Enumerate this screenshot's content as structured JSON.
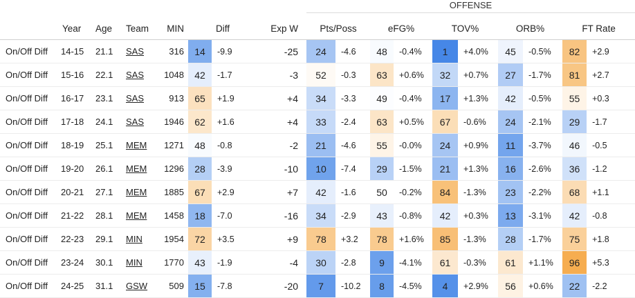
{
  "section": {
    "label": "OFFENSE"
  },
  "columns": [
    "",
    "Year",
    "Age",
    "Team",
    "MIN",
    "Diff",
    "Exp W",
    "Pts/Poss",
    "eFG%",
    "TOV%",
    "ORB%",
    "FT Rate"
  ],
  "rows": [
    {
      "label": "On/Off Diff",
      "year": "14-15",
      "age": "21.1",
      "team": "SAS",
      "min": "316",
      "diff_pct": "14",
      "diff": "-9.9",
      "expw": "-25",
      "pts_pct": "24",
      "pts": "-4.6",
      "efg_pct": "48",
      "efg": "-0.4%",
      "tov_pct": "1",
      "tov": "+4.0%",
      "orb_pct": "45",
      "orb": "-0.5%",
      "ft_pct": "82",
      "ft": "+2.9"
    },
    {
      "label": "On/Off Diff",
      "year": "15-16",
      "age": "22.1",
      "team": "SAS",
      "min": "1048",
      "diff_pct": "42",
      "diff": "-1.7",
      "expw": "-3",
      "pts_pct": "52",
      "pts": "-0.3",
      "efg_pct": "63",
      "efg": "+0.6%",
      "tov_pct": "32",
      "tov": "+0.7%",
      "orb_pct": "27",
      "orb": "-1.7%",
      "ft_pct": "81",
      "ft": "+2.7"
    },
    {
      "label": "On/Off Diff",
      "year": "16-17",
      "age": "23.1",
      "team": "SAS",
      "min": "913",
      "diff_pct": "65",
      "diff": "+1.9",
      "expw": "+4",
      "pts_pct": "34",
      "pts": "-3.3",
      "efg_pct": "49",
      "efg": "-0.4%",
      "tov_pct": "17",
      "tov": "+1.3%",
      "orb_pct": "42",
      "orb": "-0.5%",
      "ft_pct": "55",
      "ft": "+0.3"
    },
    {
      "label": "On/Off Diff",
      "year": "17-18",
      "age": "24.1",
      "team": "SAS",
      "min": "1946",
      "diff_pct": "62",
      "diff": "+1.6",
      "expw": "+4",
      "pts_pct": "33",
      "pts": "-2.4",
      "efg_pct": "63",
      "efg": "+0.5%",
      "tov_pct": "67",
      "tov": "-0.6%",
      "orb_pct": "24",
      "orb": "-2.1%",
      "ft_pct": "29",
      "ft": "-1.7"
    },
    {
      "label": "On/Off Diff",
      "year": "18-19",
      "age": "25.1",
      "team": "MEM",
      "min": "1271",
      "diff_pct": "48",
      "diff": "-0.8",
      "expw": "-2",
      "pts_pct": "21",
      "pts": "-4.6",
      "efg_pct": "55",
      "efg": "-0.0%",
      "tov_pct": "24",
      "tov": "+0.9%",
      "orb_pct": "11",
      "orb": "-3.7%",
      "ft_pct": "46",
      "ft": "-0.5"
    },
    {
      "label": "On/Off Diff",
      "year": "19-20",
      "age": "26.1",
      "team": "MEM",
      "min": "1296",
      "diff_pct": "28",
      "diff": "-3.9",
      "expw": "-10",
      "pts_pct": "10",
      "pts": "-7.4",
      "efg_pct": "29",
      "efg": "-1.5%",
      "tov_pct": "21",
      "tov": "+1.3%",
      "orb_pct": "16",
      "orb": "-2.6%",
      "ft_pct": "36",
      "ft": "-1.2"
    },
    {
      "label": "On/Off Diff",
      "year": "20-21",
      "age": "27.1",
      "team": "MEM",
      "min": "1885",
      "diff_pct": "67",
      "diff": "+2.9",
      "expw": "+7",
      "pts_pct": "42",
      "pts": "-1.6",
      "efg_pct": "50",
      "efg": "-0.2%",
      "tov_pct": "84",
      "tov": "-1.3%",
      "orb_pct": "23",
      "orb": "-2.2%",
      "ft_pct": "68",
      "ft": "+1.1"
    },
    {
      "label": "On/Off Diff",
      "year": "21-22",
      "age": "28.1",
      "team": "MEM",
      "min": "1458",
      "diff_pct": "18",
      "diff": "-7.0",
      "expw": "-16",
      "pts_pct": "34",
      "pts": "-2.9",
      "efg_pct": "43",
      "efg": "-0.8%",
      "tov_pct": "42",
      "tov": "+0.3%",
      "orb_pct": "13",
      "orb": "-3.1%",
      "ft_pct": "42",
      "ft": "-0.8"
    },
    {
      "label": "On/Off Diff",
      "year": "22-23",
      "age": "29.1",
      "team": "MIN",
      "min": "1954",
      "diff_pct": "72",
      "diff": "+3.5",
      "expw": "+9",
      "pts_pct": "78",
      "pts": "+3.2",
      "efg_pct": "78",
      "efg": "+1.6%",
      "tov_pct": "85",
      "tov": "-1.3%",
      "orb_pct": "28",
      "orb": "-1.7%",
      "ft_pct": "75",
      "ft": "+1.8"
    },
    {
      "label": "On/Off Diff",
      "year": "23-24",
      "age": "30.1",
      "team": "MIN",
      "min": "1770",
      "diff_pct": "43",
      "diff": "-1.9",
      "expw": "-4",
      "pts_pct": "30",
      "pts": "-2.8",
      "efg_pct": "9",
      "efg": "-4.1%",
      "tov_pct": "61",
      "tov": "-0.3%",
      "orb_pct": "61",
      "orb": "+1.1%",
      "ft_pct": "96",
      "ft": "+5.3"
    },
    {
      "label": "On/Off Diff",
      "year": "24-25",
      "age": "31.1",
      "team": "GSW",
      "min": "509",
      "diff_pct": "15",
      "diff": "-7.8",
      "expw": "-20",
      "pts_pct": "7",
      "pts": "-10.2",
      "efg_pct": "8",
      "efg": "-4.5%",
      "tov_pct": "4",
      "tov": "+2.9%",
      "orb_pct": "56",
      "orb": "+0.6%",
      "ft_pct": "22",
      "ft": "-2.2"
    }
  ],
  "colors": {
    "low": "#3f83e6",
    "mid": "#ffffff",
    "high": "#f5a742",
    "text": "#222222",
    "rule": "#cfcfcf"
  }
}
